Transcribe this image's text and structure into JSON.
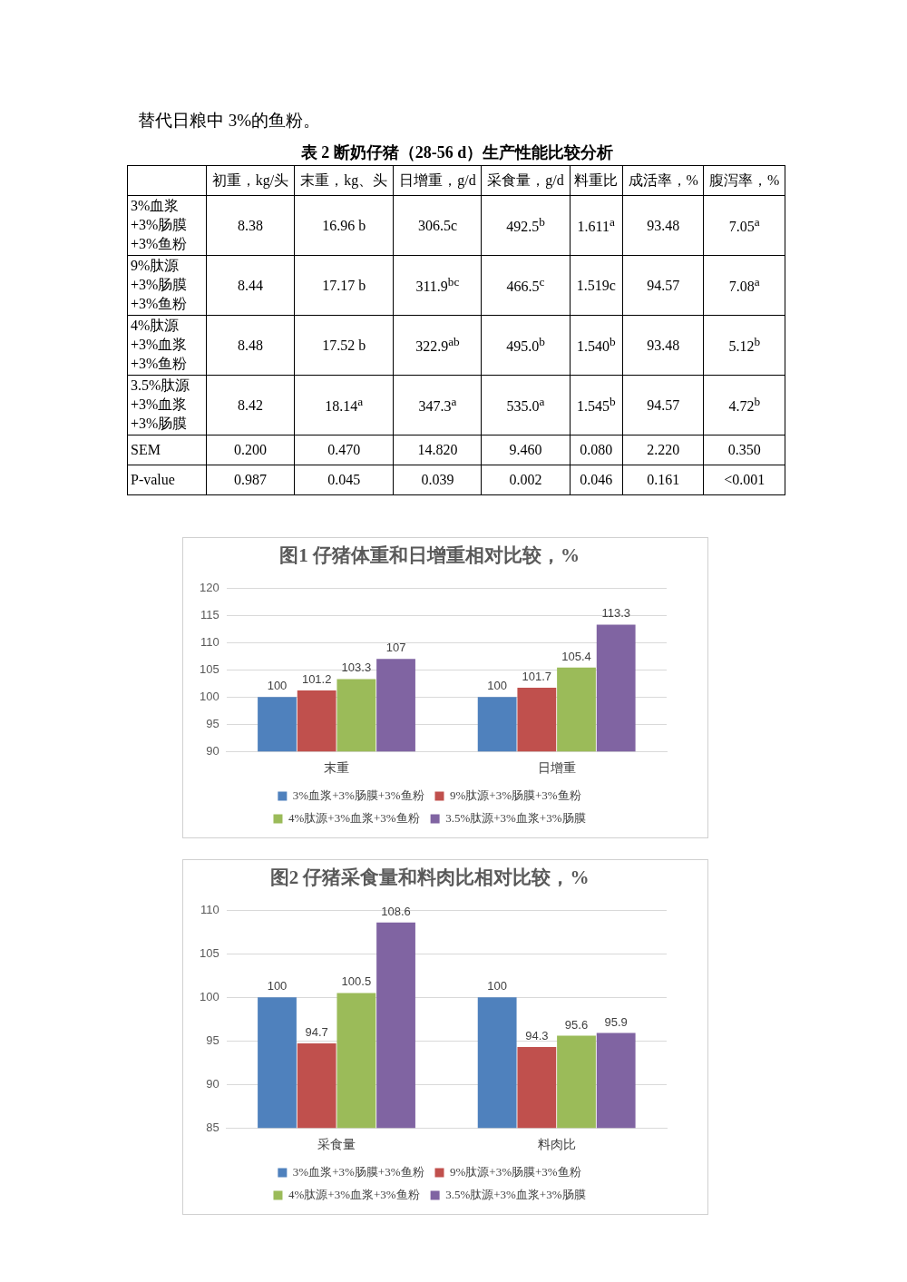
{
  "chart_data": [
    {
      "type": "other",
      "title": "表 2 断奶仔猪（28-56 d）生产性能比较分析",
      "annotations": [
        "替代日粮中 3%的鱼粉。",
        "初重，kg/头",
        "末重，kg、头",
        "日增重，g/d",
        "采食量，g/d",
        "料重比",
        "成活率，%",
        "腹泻率，%",
        "3%血浆+3%肠膜+3%鱼粉",
        "8.38",
        "16.96 b",
        "306.5c",
        "492.5$^{b}$",
        "1.611$^{a}$",
        "93.48",
        "7.05$^{a}$",
        "9%肽源+3%肠膜+3%鱼粉",
        "8.44",
        "17.17 b",
        "311.9$^{bc}$",
        "466.5$^{c}$",
        "1.519c",
        "94.57",
        "7.08$^{a}$",
        "4%肽源+3%血浆+3%鱼粉",
        "8.48",
        "17.52 b",
        "322.9$^{ab}$",
        "495.0$^{b}$",
        "1.540$^{b}$",
        "93.48",
        "5.12$^{b}$",
        "3.5%肽源+3%血浆+3%肠膜",
        "8.42",
        "18.14$^{a}$",
        "347.3$^{a}$",
        "535.0$^{a}$",
        "1.545$^{b}$",
        "94.57",
        "4.72$^{b}$",
        "SEM",
        "0.200",
        "0.470",
        "14.820",
        "9.460",
        "0.080",
        "2.220",
        "0.350",
        "P-value",
        "0.987",
        "0.045",
        "0.039",
        "0.002",
        "0.046",
        "0.161",
        "<0.001"
      ]
    },
    {
      "type": "bar",
      "title": "图1 仔猪体重和日增重相对比较，%",
      "categories": [
        "末重",
        "日增重"
      ],
      "ylim": [
        90,
        120
      ],
      "yticks": [
        90,
        95,
        100,
        105,
        110,
        115,
        120
      ],
      "grid": "y",
      "legend": "bottom",
      "data_labels": true,
      "series": [
        {
          "name": "3%血浆+3%肠膜+3%鱼粉",
          "color": "#4f81bd",
          "values": [
            100,
            100
          ]
        },
        {
          "name": "9%肽源+3%肠膜+3%鱼粉",
          "color": "#c0504d",
          "values": [
            101.2,
            101.7
          ]
        },
        {
          "name": "4%肽源+3%血浆+3%鱼粉",
          "color": "#9bbb59",
          "values": [
            103.3,
            105.4
          ]
        },
        {
          "name": "3.5%肽源+3%血浆+3%肠膜",
          "color": "#8064a2",
          "values": [
            107,
            113.3
          ]
        }
      ]
    },
    {
      "type": "bar",
      "title": "图2 仔猪采食量和料肉比相对比较，%",
      "categories": [
        "采食量",
        "料肉比"
      ],
      "ylim": [
        85,
        110
      ],
      "yticks": [
        85,
        90,
        95,
        100,
        105,
        110
      ],
      "grid": "y",
      "legend": "bottom",
      "data_labels": true,
      "series": [
        {
          "name": "3%血浆+3%肠膜+3%鱼粉",
          "color": "#4f81bd",
          "values": [
            100,
            100
          ]
        },
        {
          "name": "9%肽源+3%肠膜+3%鱼粉",
          "color": "#c0504d",
          "values": [
            94.7,
            94.3
          ]
        },
        {
          "name": "4%肽源+3%血浆+3%鱼粉",
          "color": "#9bbb59",
          "values": [
            100.5,
            95.6
          ]
        },
        {
          "name": "3.5%肽源+3%血浆+3%肠膜",
          "color": "#8064a2",
          "values": [
            108.6,
            95.9
          ]
        }
      ]
    }
  ]
}
